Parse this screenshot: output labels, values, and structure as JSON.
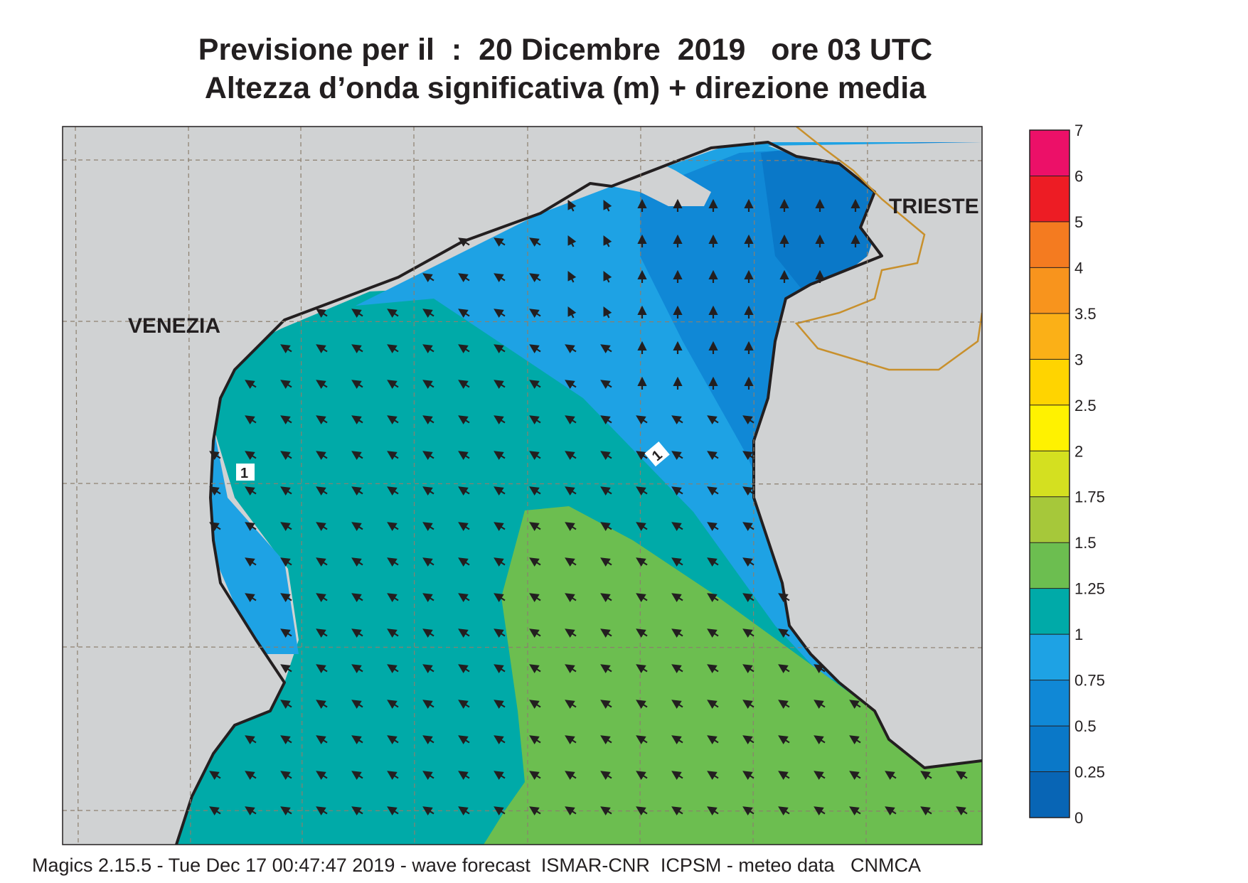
{
  "title": {
    "line1": "Previsione per il  :  20 Dicembre  2019   ore 03 UTC",
    "line2": "Altezza d’onda significativa (m) + direzione media"
  },
  "places": {
    "venezia": "VENEZIA",
    "trieste": "TRIESTE"
  },
  "contour_labels": [
    "1",
    "1"
  ],
  "legend": {
    "ticks": [
      "0",
      "0.25",
      "0.5",
      "0.75",
      "1",
      "1.25",
      "1.5",
      "1.75",
      "2",
      "2.5",
      "3",
      "3.5",
      "4",
      "5",
      "6",
      "7"
    ],
    "colors": [
      "#0865b5",
      "#0a78c8",
      "#1088d6",
      "#1ea2e4",
      "#00aaa8",
      "#6cbe50",
      "#a6c83a",
      "#d4e020",
      "#fff200",
      "#ffd400",
      "#fbb017",
      "#f8941d",
      "#f47b20",
      "#ed1c24",
      "#ec1068"
    ]
  },
  "colors": {
    "land": "#d0d2d3",
    "band_0_25_0_5": "#0a78c8",
    "band_0_5_0_75": "#1088d6",
    "band_0_75_1": "#1ea2e4",
    "band_1_1_25": "#00aaa8",
    "band_1_25_1_5": "#6cbe50",
    "border": "#c8902c"
  },
  "footer": "Magics 2.15.5 - Tue Dec 17 00:47:47 2019 - wave forecast  ISMAR-CNR  ICPSM - meteo data   CNMCA"
}
